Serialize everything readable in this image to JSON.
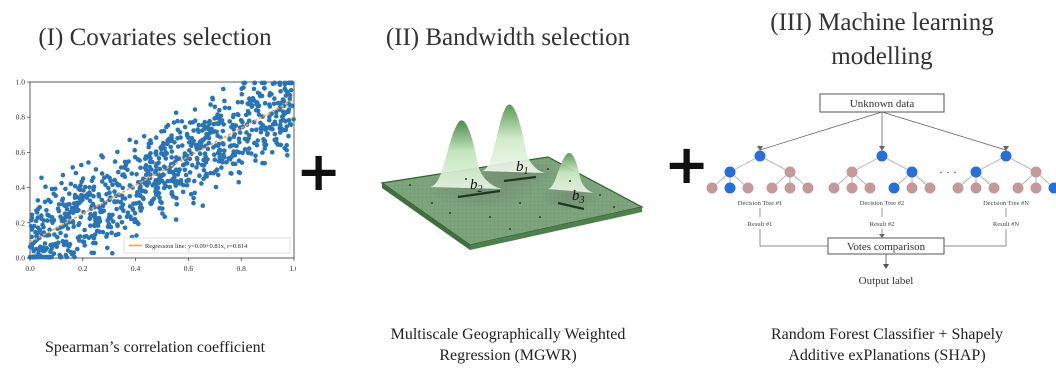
{
  "panel1": {
    "title": "(I) Covariates selection",
    "caption": "Spearman’s correlation coefficient",
    "chart_data": {
      "type": "scatter",
      "x_ticks": [
        "0.0",
        "0.2",
        "0.4",
        "0.6",
        "0.8",
        "1.0"
      ],
      "y_ticks": [
        "0.0",
        "0.2",
        "0.4",
        "0.6",
        "0.8",
        "1.0"
      ],
      "xlim": [
        0,
        1
      ],
      "ylim": [
        0,
        1
      ],
      "regression": {
        "intercept": 0.09,
        "slope": 0.81
      },
      "legend_label": "Regression line: y=0.09+0.81x, r=0.814",
      "legend_position": "bottom-right",
      "point_color": "#2b74b4",
      "line_color": "#f0a060"
    }
  },
  "plus_sign": "+",
  "panel2": {
    "title": "(II) Bandwidth selection",
    "caption_line1": "Multiscale Geographically Weighted",
    "caption_line2": "Regression (MGWR)",
    "labels": {
      "b1": "b",
      "b1_sub": "1",
      "b2": "b",
      "b2_sub": "2",
      "b3": "b",
      "b3_sub": "3"
    }
  },
  "panel3": {
    "title_line1": "(III) Machine learning",
    "title_line2": "modelling",
    "caption_line1": "Random Forest Classifier + Shapely",
    "caption_line2": "Additive exPlanations (SHAP)",
    "unknown_data": "Unknown data",
    "tree_labels": [
      "Decision Tree #1",
      "Decision Tree #2",
      "Decision Tree #N"
    ],
    "result_labels": [
      "Result #1",
      "Result #2",
      "Result #N"
    ],
    "ellipsis": "· · ·",
    "votes": "Votes comparison",
    "output": "Output label",
    "node_blue": "#2a6fd6",
    "node_pink": "#c4999b"
  }
}
